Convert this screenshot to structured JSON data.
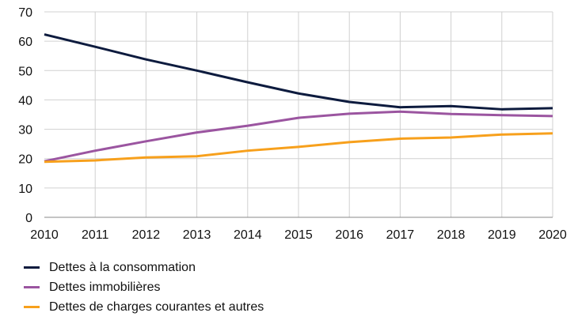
{
  "chart_data": {
    "type": "line",
    "title": "",
    "xlabel": "",
    "ylabel": "",
    "x": [
      2010,
      2011,
      2012,
      2013,
      2014,
      2015,
      2016,
      2017,
      2018,
      2019,
      2020
    ],
    "ylim": [
      0,
      70
    ],
    "yticks": [
      0,
      10,
      20,
      30,
      40,
      50,
      60,
      70
    ],
    "grid": true,
    "legend_position": "bottom",
    "series": [
      {
        "name": "Dettes à la consommation",
        "color": "#0d1b3e",
        "values": [
          62.3,
          58.1,
          53.8,
          50.0,
          46.0,
          42.2,
          39.3,
          37.5,
          37.9,
          36.8,
          37.2
        ]
      },
      {
        "name": "Dettes immobilières",
        "color": "#9b55a0",
        "values": [
          19.1,
          22.7,
          25.9,
          28.9,
          31.2,
          33.9,
          35.3,
          36.0,
          35.2,
          34.8,
          34.5
        ]
      },
      {
        "name": "Dettes de charges courantes et autres",
        "color": "#f7a01c",
        "values": [
          18.9,
          19.4,
          20.4,
          20.8,
          22.7,
          24.0,
          25.6,
          26.8,
          27.2,
          28.2,
          28.6
        ]
      }
    ]
  }
}
